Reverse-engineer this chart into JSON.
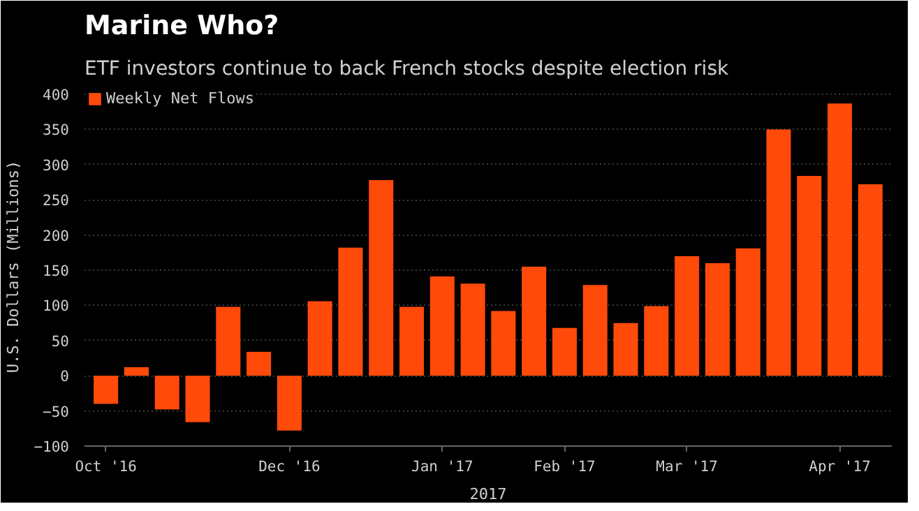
{
  "chart_data": {
    "type": "bar",
    "title": "Marine Who?",
    "subtitle": "ETF investors continue to back French stocks despite election risk",
    "xlabel": "2017",
    "ylabel": "U.S. Dollars (Millions)",
    "categories": [
      "Oct '16",
      null,
      null,
      null,
      null,
      null,
      "Dec '16",
      null,
      null,
      null,
      null,
      "Jan '17",
      null,
      null,
      null,
      "Feb '17",
      null,
      null,
      null,
      "Mar '17",
      null,
      null,
      null,
      null,
      "Apr '17",
      null
    ],
    "series": [
      {
        "name": "Weekly Net Flows",
        "color": "#ff4a0a",
        "values": [
          -40,
          12,
          -48,
          -66,
          98,
          34,
          -78,
          106,
          182,
          278,
          98,
          141,
          131,
          92,
          155,
          68,
          129,
          75,
          99,
          170,
          160,
          181,
          350,
          284,
          387,
          272
        ]
      }
    ],
    "ylim": [
      -100,
      410
    ],
    "yticks": [
      -100,
      -50,
      0,
      50,
      100,
      150,
      200,
      250,
      300,
      350,
      400
    ],
    "grid": "y",
    "legend": "top left"
  }
}
